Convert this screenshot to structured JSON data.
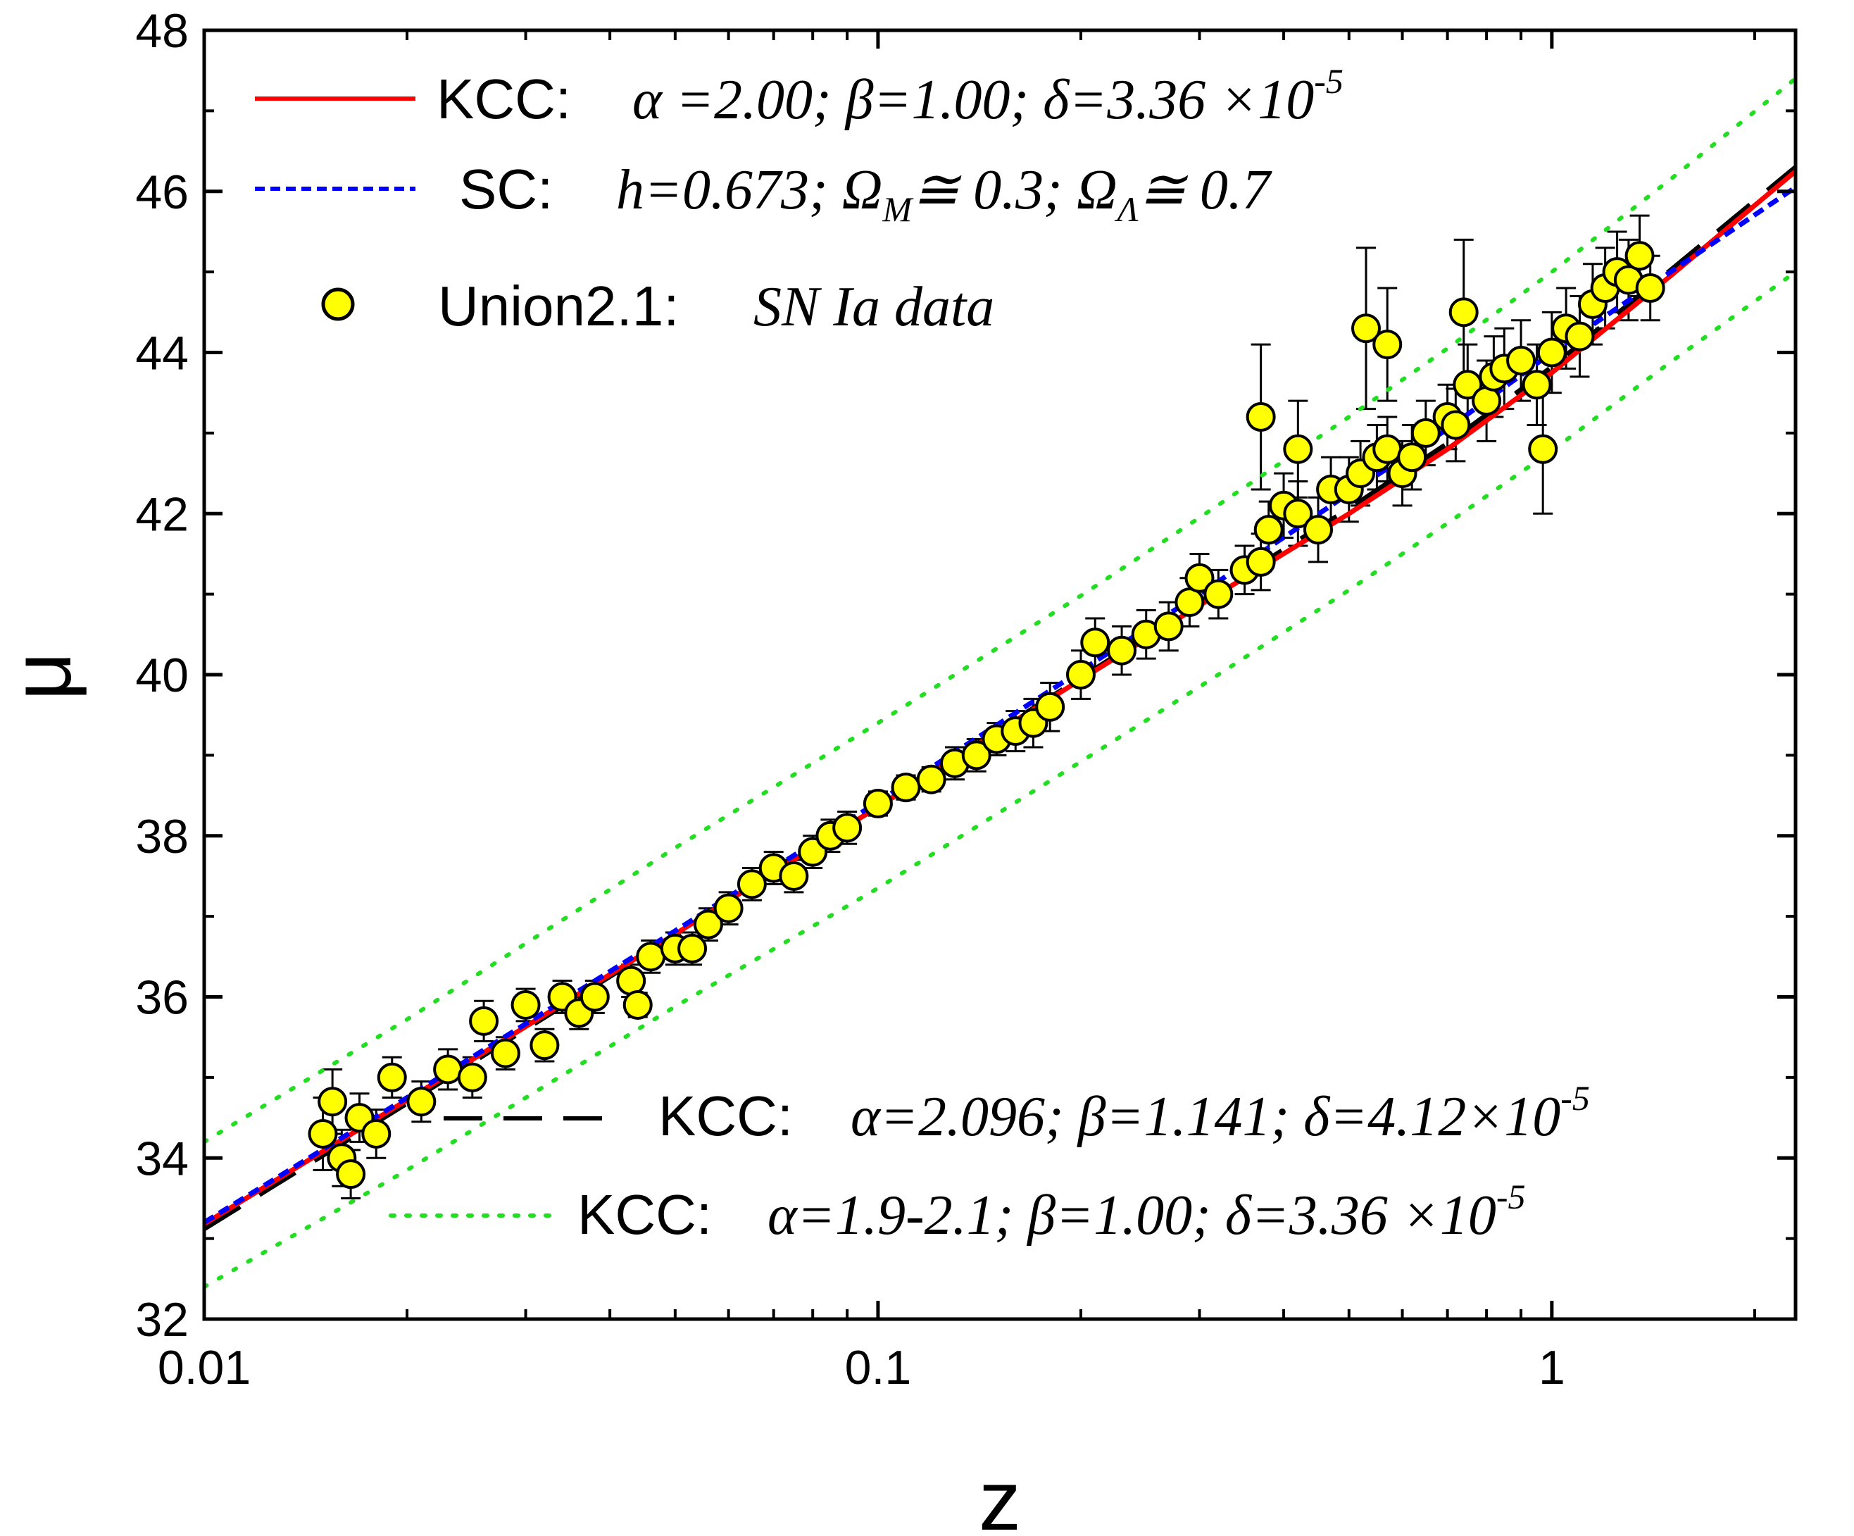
{
  "chart_data": {
    "type": "scatter",
    "title": "",
    "xlabel": "z",
    "ylabel": "μ",
    "xscale": "log",
    "xlim": [
      0.01,
      2.3
    ],
    "ylim": [
      32,
      48
    ],
    "xticks": [
      {
        "value": 0.01,
        "label": "0.01"
      },
      {
        "value": 0.1,
        "label": "0.1"
      },
      {
        "value": 1,
        "label": "1"
      }
    ],
    "yticks": [
      {
        "value": 32,
        "label": "32"
      },
      {
        "value": 34,
        "label": "34"
      },
      {
        "value": 36,
        "label": "36"
      },
      {
        "value": 38,
        "label": "38"
      },
      {
        "value": 40,
        "label": "40"
      },
      {
        "value": 42,
        "label": "42"
      },
      {
        "value": 44,
        "label": "44"
      },
      {
        "value": 46,
        "label": "46"
      },
      {
        "value": 48,
        "label": "48"
      }
    ],
    "grid": false,
    "series": [
      {
        "name": "KCC: α=2.00; β=1.00; δ=3.36×10⁻⁵",
        "type": "line",
        "color": "#ff0000",
        "style": "solid",
        "x": [
          0.01,
          0.02,
          0.05,
          0.1,
          0.2,
          0.3,
          0.5,
          0.7,
          1.0,
          1.5,
          2.3
        ],
        "y": [
          33.18,
          34.72,
          36.78,
          38.36,
          39.94,
          40.86,
          42.0,
          42.8,
          43.75,
          44.95,
          46.25
        ]
      },
      {
        "name": "SC: h=0.673; Ω_M≅0.3; Ω_Λ≅0.7",
        "type": "line",
        "color": "#0000ff",
        "style": "dashed",
        "x": [
          0.01,
          0.02,
          0.05,
          0.1,
          0.2,
          0.3,
          0.5,
          0.7,
          1.0,
          1.5,
          2.3
        ],
        "y": [
          33.2,
          34.75,
          36.82,
          38.42,
          40.05,
          41.0,
          42.25,
          43.05,
          44.0,
          45.0,
          46.05
        ]
      },
      {
        "name": "KCC: α=2.096; β=1.141; δ=4.12×10⁻⁵",
        "type": "line",
        "color": "#000000",
        "style": "longdash",
        "x": [
          0.01,
          0.02,
          0.05,
          0.1,
          0.2,
          0.3,
          0.5,
          0.7,
          1.0,
          1.5,
          2.3
        ],
        "y": [
          33.12,
          34.68,
          36.76,
          38.36,
          39.96,
          40.9,
          42.06,
          42.87,
          43.82,
          45.02,
          46.3
        ]
      },
      {
        "name": "KCC: α=1.9-2.1; β=1.00; δ=3.36×10⁻⁵ (upper)",
        "type": "line",
        "color": "#22dd22",
        "style": "dotted",
        "x": [
          0.01,
          0.02,
          0.05,
          0.1,
          0.2,
          0.3,
          0.5,
          0.7,
          1.0,
          1.5,
          2.3
        ],
        "y": [
          34.2,
          35.72,
          37.85,
          39.4,
          40.98,
          41.95,
          43.2,
          44.05,
          45.0,
          46.15,
          47.4
        ]
      },
      {
        "name": "KCC: α=1.9-2.1; β=1.00; δ=3.36×10⁻⁵ (lower)",
        "type": "line",
        "color": "#22dd22",
        "style": "dotted",
        "x": [
          0.01,
          0.02,
          0.05,
          0.1,
          0.2,
          0.3,
          0.5,
          0.7,
          1.0,
          1.5,
          2.3
        ],
        "y": [
          32.4,
          33.85,
          35.88,
          37.35,
          38.92,
          39.85,
          41.05,
          41.88,
          42.78,
          43.88,
          45.0
        ]
      },
      {
        "name": "Union2.1: SN Ia data",
        "type": "scatter",
        "marker": "circle",
        "color": "#ffff00",
        "edgecolor": "#000000",
        "x": [
          0.015,
          0.0155,
          0.016,
          0.0165,
          0.017,
          0.018,
          0.019,
          0.021,
          0.023,
          0.025,
          0.026,
          0.028,
          0.03,
          0.032,
          0.034,
          0.036,
          0.038,
          0.043,
          0.046,
          0.05,
          0.053,
          0.056,
          0.06,
          0.065,
          0.07,
          0.075,
          0.08,
          0.085,
          0.09,
          0.1,
          0.11,
          0.12,
          0.13,
          0.14,
          0.15,
          0.16,
          0.17,
          0.18,
          0.2,
          0.21,
          0.23,
          0.25,
          0.27,
          0.29,
          0.3,
          0.32,
          0.35,
          0.37,
          0.38,
          0.4,
          0.42,
          0.45,
          0.47,
          0.5,
          0.52,
          0.55,
          0.57,
          0.6,
          0.62,
          0.65,
          0.7,
          0.72,
          0.75,
          0.8,
          0.82,
          0.85,
          0.9,
          0.95,
          1.0,
          1.05,
          1.1,
          1.15,
          1.2,
          1.25,
          1.3,
          1.35,
          1.4,
          0.53,
          0.57,
          0.74,
          0.37,
          0.97,
          0.42,
          0.044
        ],
        "y": [
          34.3,
          34.7,
          34.0,
          33.8,
          34.5,
          34.3,
          35.0,
          34.7,
          35.1,
          35.0,
          35.7,
          35.3,
          35.9,
          35.4,
          36.0,
          35.8,
          36.0,
          36.2,
          36.5,
          36.6,
          36.6,
          36.9,
          37.1,
          37.4,
          37.6,
          37.5,
          37.8,
          38.0,
          38.1,
          38.4,
          38.6,
          38.7,
          38.9,
          39.0,
          39.2,
          39.3,
          39.4,
          39.6,
          40.0,
          40.4,
          40.3,
          40.5,
          40.6,
          40.9,
          41.2,
          41.0,
          41.3,
          41.4,
          41.8,
          42.1,
          42.0,
          41.8,
          42.3,
          42.3,
          42.5,
          42.7,
          42.8,
          42.5,
          42.7,
          43.0,
          43.2,
          43.1,
          43.6,
          43.4,
          43.7,
          43.8,
          43.9,
          43.6,
          44.0,
          44.3,
          44.2,
          44.6,
          44.8,
          45.0,
          44.9,
          45.2,
          44.8,
          44.3,
          44.1,
          44.5,
          43.2,
          42.8,
          42.8,
          35.9
        ],
        "error": [
          0.45,
          0.4,
          0.35,
          0.3,
          0.3,
          0.3,
          0.25,
          0.25,
          0.25,
          0.25,
          0.25,
          0.2,
          0.2,
          0.2,
          0.2,
          0.2,
          0.2,
          0.2,
          0.2,
          0.2,
          0.2,
          0.2,
          0.2,
          0.2,
          0.2,
          0.2,
          0.2,
          0.2,
          0.2,
          0.15,
          0.15,
          0.15,
          0.2,
          0.2,
          0.2,
          0.25,
          0.3,
          0.3,
          0.3,
          0.3,
          0.3,
          0.3,
          0.3,
          0.3,
          0.3,
          0.3,
          0.3,
          0.35,
          0.35,
          0.4,
          0.4,
          0.4,
          0.4,
          0.4,
          0.4,
          0.4,
          0.4,
          0.4,
          0.4,
          0.4,
          0.4,
          0.45,
          0.5,
          0.5,
          0.5,
          0.5,
          0.5,
          0.5,
          0.5,
          0.5,
          0.5,
          0.5,
          0.5,
          0.5,
          0.5,
          0.5,
          0.4,
          1.0,
          0.7,
          0.9,
          0.9,
          0.8,
          0.6,
          0.15
        ]
      }
    ]
  },
  "legend_top": [
    {
      "name": "KCC:",
      "params": "α =2.00; β=1.00; δ=3.36 ×10",
      "sup": "-5"
    },
    {
      "name": "SC:",
      "params": "h=0.673; Ω",
      "sub1": "M",
      "params2": "≅ 0.3; Ω",
      "sub2": "Λ",
      "params3": "≅ 0.7"
    },
    {
      "name": "Union2.1:",
      "params": "SN Ia data"
    }
  ],
  "legend_bottom": [
    {
      "name": "KCC:",
      "params": "α=2.096; β=1.141; δ=4.12×10",
      "sup": "-5"
    },
    {
      "name": "KCC:",
      "params": "α=1.9-2.1; β=1.00; δ=3.36 ×10",
      "sup": "-5"
    }
  ]
}
